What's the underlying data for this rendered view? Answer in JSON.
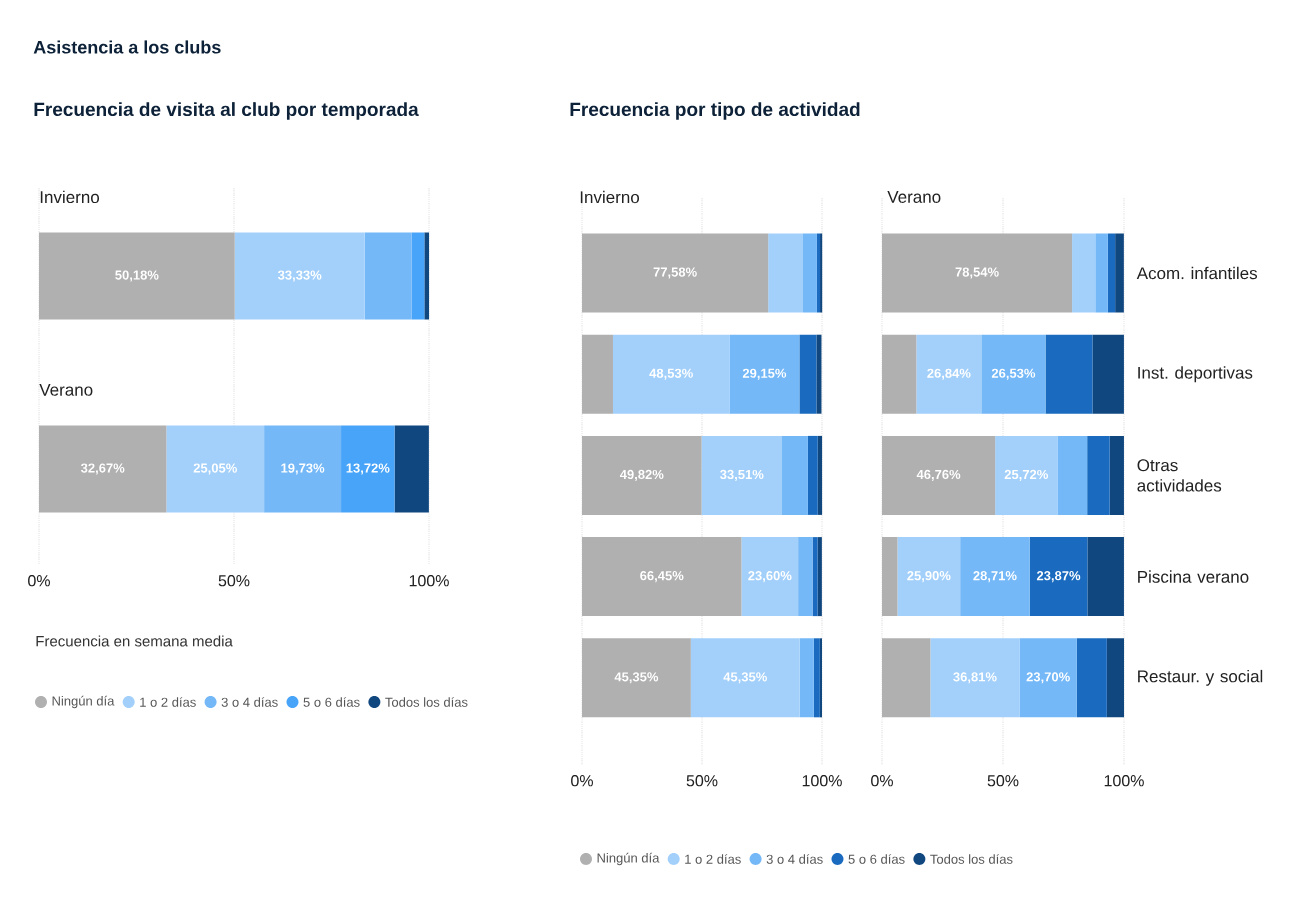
{
  "chart_data": [
    {
      "type": "bar",
      "orientation": "horizontal",
      "stacked": true,
      "title": "Asistencia a los clubs",
      "subtitle": "Frecuencia de visita al club por temporada",
      "categories": [
        "Invierno",
        "Verano"
      ],
      "legend_title": "Frecuencia en semana media",
      "legend": "bottom",
      "grid": "x",
      "xlim": [
        0,
        100
      ],
      "xticks": [
        {
          "value": 0,
          "label": "0%"
        },
        {
          "value": 50,
          "label": "50%"
        },
        {
          "value": 100,
          "label": "100%"
        }
      ],
      "series": [
        {
          "name": "Ningún día",
          "color": "#b0b0b0",
          "values": [
            50.18,
            32.67
          ],
          "value_labels": [
            "50,18%",
            "32,67%"
          ]
        },
        {
          "name": "1 o 2 días",
          "color": "#a3d0fb",
          "values": [
            33.33,
            25.05
          ],
          "value_labels": [
            "33,33%",
            "25,05%"
          ]
        },
        {
          "name": "3 o 4 días",
          "color": "#74b8f8",
          "values": [
            12.0,
            19.73
          ],
          "value_labels": [
            null,
            "19,73%"
          ]
        },
        {
          "name": "5 o 6 días",
          "color": "#48a4f8",
          "values": [
            3.3,
            13.72
          ],
          "value_labels": [
            null,
            "13,72%"
          ]
        },
        {
          "name": "Todos los días",
          "color": "#11477f",
          "values": [
            1.2,
            8.8
          ],
          "value_labels": [
            null,
            null
          ]
        }
      ]
    },
    {
      "type": "bar",
      "orientation": "horizontal",
      "stacked": true,
      "title": "Frecuencia por tipo de actividad",
      "subtitle": "Invierno",
      "categories": [
        null,
        null,
        null,
        null,
        null
      ],
      "tick_labels": "x",
      "legend": "bottom",
      "grid": "x",
      "xlim": [
        0,
        100
      ],
      "xticks": [
        {
          "value": 0,
          "label": "0%"
        },
        {
          "value": 50,
          "label": "50%"
        },
        {
          "value": 100,
          "label": "100%"
        }
      ],
      "series": [
        {
          "name": "Ningún día",
          "color": "#b0b0b0",
          "values": [
            77.58,
            12.9,
            49.82,
            66.45,
            45.35
          ],
          "value_labels": [
            "77,58%",
            null,
            "49,82%",
            "66,45%",
            "45,35%"
          ]
        },
        {
          "name": "1 o 2 días",
          "color": "#a3d0fb",
          "values": [
            14.5,
            48.53,
            33.51,
            23.6,
            45.35
          ],
          "value_labels": [
            null,
            "48,53%",
            "33,51%",
            "23,60%",
            "45,35%"
          ]
        },
        {
          "name": "3 o 4 días",
          "color": "#74b8f8",
          "values": [
            5.8,
            29.15,
            10.8,
            6.0,
            5.9
          ],
          "value_labels": [
            null,
            "29,15%",
            null,
            null,
            null
          ]
        },
        {
          "name": "5 o 6 días",
          "color": "#1a6bbf",
          "values": [
            1.3,
            7.1,
            4.1,
            2.1,
            2.5
          ],
          "value_labels": [
            null,
            null,
            null,
            null,
            null
          ]
        },
        {
          "name": "Todos los días",
          "color": "#11477f",
          "values": [
            0.9,
            2.1,
            1.8,
            1.8,
            0.9
          ],
          "value_labels": [
            null,
            null,
            null,
            null,
            null
          ]
        }
      ]
    },
    {
      "type": "bar",
      "orientation": "horizontal",
      "stacked": true,
      "subtitle": "Verano",
      "categories": [
        "Acom. infantiles",
        "Inst. deportivas",
        "Otras actividades",
        "Piscina verano",
        "Restaur. y social"
      ],
      "grid": "x",
      "xlim": [
        0,
        100
      ],
      "xticks": [
        {
          "value": 0,
          "label": "0%"
        },
        {
          "value": 50,
          "label": "50%"
        },
        {
          "value": 100,
          "label": "100%"
        }
      ],
      "series": [
        {
          "color": "#b0b0b0",
          "values": [
            78.54,
            14.2,
            46.76,
            6.4,
            20.0
          ],
          "value_labels": [
            "78,54%",
            null,
            "46,76%",
            null,
            null
          ]
        },
        {
          "color": "#a3d0fb",
          "values": [
            9.6,
            26.84,
            25.72,
            25.9,
            36.81
          ],
          "value_labels": [
            null,
            "26,84%",
            "25,72%",
            "25,90%",
            "36,81%"
          ]
        },
        {
          "color": "#74b8f8",
          "values": [
            5.2,
            26.53,
            12.3,
            28.71,
            23.7
          ],
          "value_labels": [
            null,
            "26,53%",
            null,
            "28,71%",
            "23,70%"
          ]
        },
        {
          "color": "#1a6bbf",
          "values": [
            3.0,
            19.4,
            9.3,
            23.87,
            12.4
          ],
          "value_labels": [
            null,
            null,
            null,
            "23,87%",
            null
          ]
        },
        {
          "color": "#11477f",
          "values": [
            3.6,
            13.0,
            5.9,
            15.1,
            7.1
          ],
          "value_labels": [
            null,
            null,
            null,
            null,
            null
          ]
        }
      ]
    }
  ]
}
